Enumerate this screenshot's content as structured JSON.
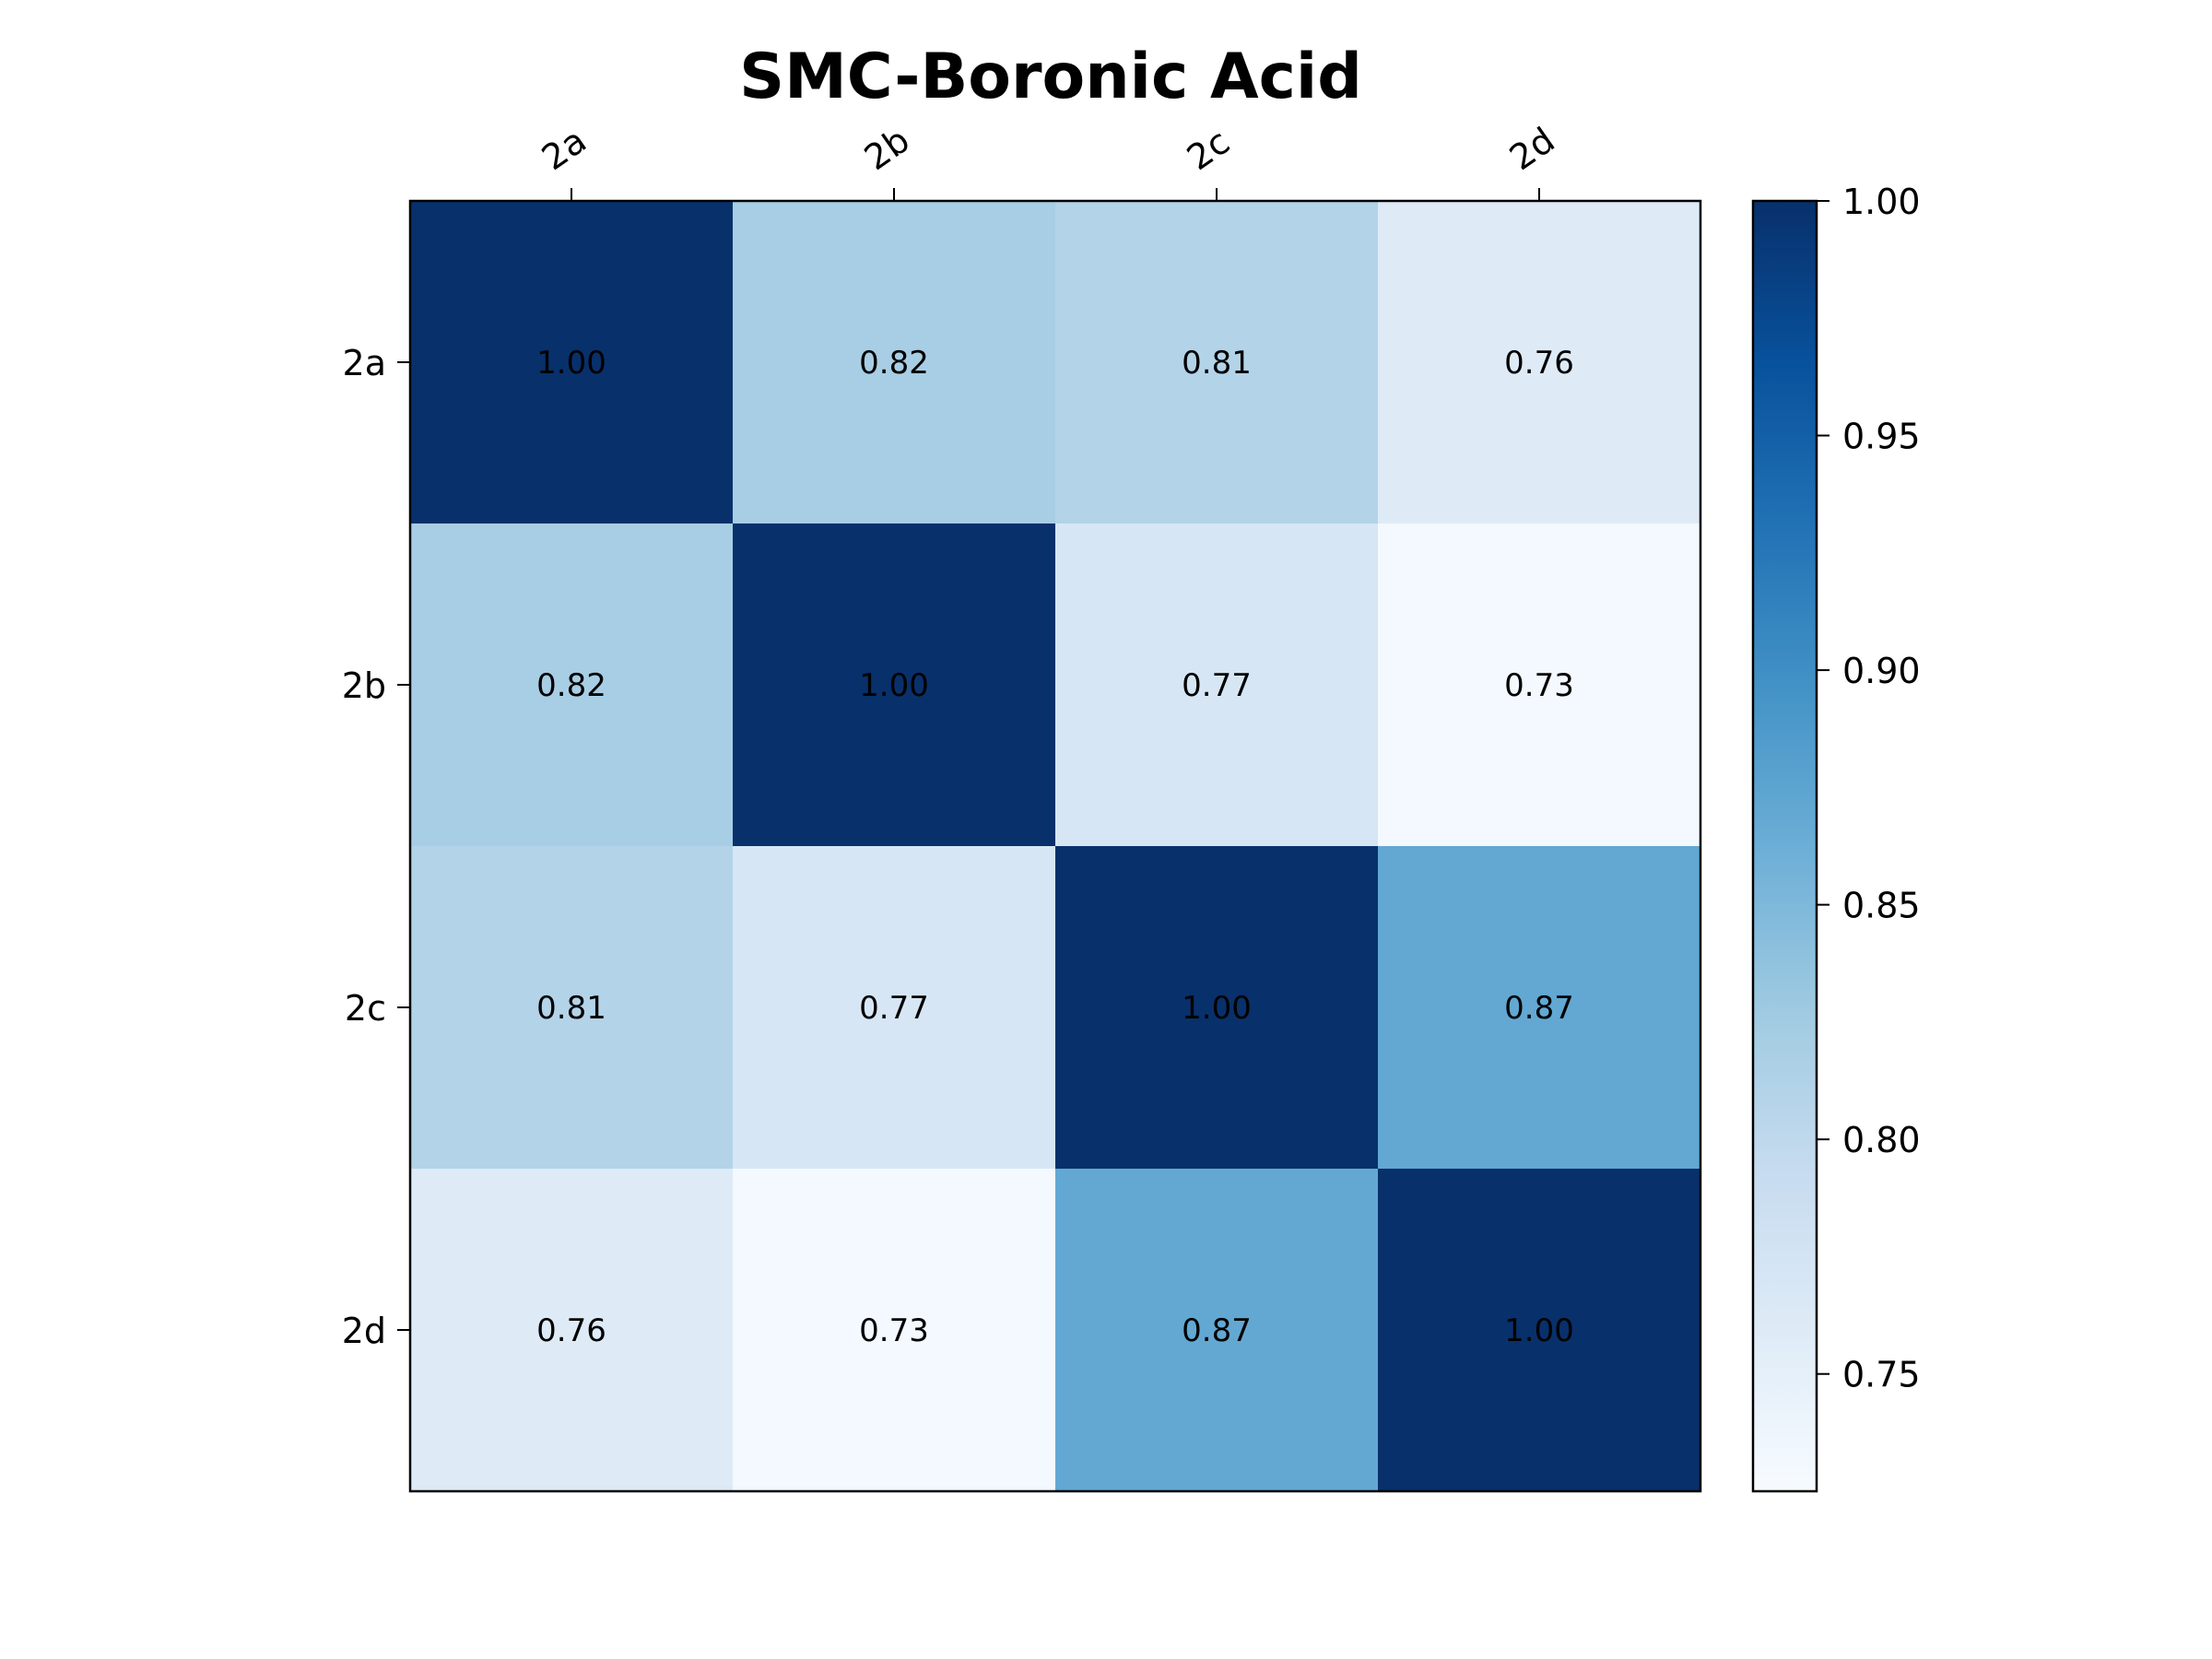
{
  "chart_data": {
    "type": "heatmap",
    "title": "SMC-Boronic Acid",
    "row_labels": [
      "2a",
      "2b",
      "2c",
      "2d"
    ],
    "col_labels": [
      "2a",
      "2b",
      "2c",
      "2d"
    ],
    "values": [
      [
        1.0,
        0.82,
        0.81,
        0.76
      ],
      [
        0.82,
        1.0,
        0.77,
        0.73
      ],
      [
        0.81,
        0.77,
        1.0,
        0.87
      ],
      [
        0.76,
        0.73,
        0.87,
        1.0
      ]
    ],
    "cell_labels": [
      [
        "1.00",
        "0.82",
        "0.81",
        "0.76"
      ],
      [
        "0.82",
        "1.00",
        "0.77",
        "0.73"
      ],
      [
        "0.81",
        "0.77",
        "1.00",
        "0.87"
      ],
      [
        "0.76",
        "0.73",
        "0.87",
        "1.00"
      ]
    ],
    "colormap": "Blues",
    "colorbar": {
      "vmin": 0.725,
      "vmax": 1.0,
      "ticks": [
        0.75,
        0.8,
        0.85,
        0.9,
        0.95,
        1.0
      ],
      "tick_labels": [
        "0.75",
        "0.80",
        "0.85",
        "0.90",
        "0.95",
        "1.00"
      ]
    },
    "x_ticks_position": "top",
    "grid": false
  }
}
